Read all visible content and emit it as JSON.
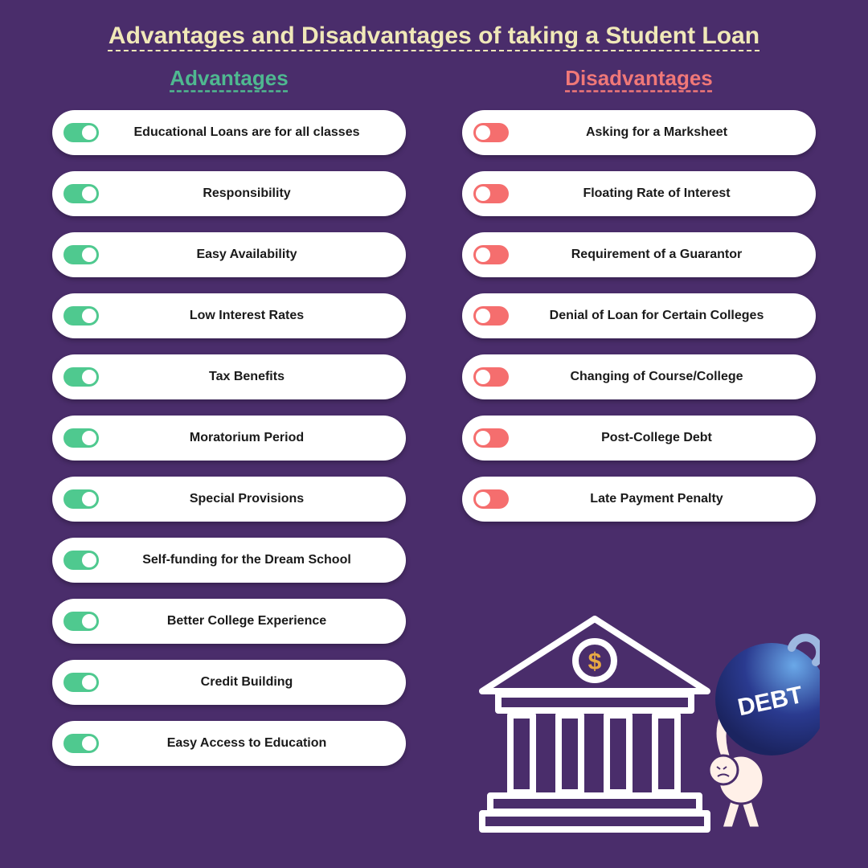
{
  "title": "Advantages and Disadvantages of taking a Student Loan",
  "advantages": {
    "heading": "Advantages",
    "color": "#4fb890",
    "toggle_color": "#4fc98f",
    "items": [
      "Educational Loans are for all classes",
      "Responsibility",
      "Easy Availability",
      "Low Interest Rates",
      "Tax Benefits",
      "Moratorium Period",
      "Special Provisions",
      "Self-funding for the Dream School",
      "Better College Experience",
      "Credit Building",
      "Easy Access to Education"
    ]
  },
  "disadvantages": {
    "heading": "Disadvantages",
    "color": "#f07878",
    "toggle_color": "#f56e6e",
    "items": [
      "Asking for a Marksheet",
      "Floating Rate of Interest",
      "Requirement of a Guarantor",
      "Denial of Loan for Certain Colleges",
      "Changing of Course/College",
      "Post-College Debt",
      "Late Payment Penalty"
    ]
  },
  "illustration": {
    "debt_label": "DEBT",
    "bank_stroke": "#ffffff",
    "coin_fill": "#e8a943",
    "ball_fill": "#2a3a8f",
    "ball_highlight": "#6aa8e8",
    "figure_fill": "#fff0e8"
  },
  "style": {
    "background": "#4a2d6b",
    "title_color": "#f0e8b8",
    "pill_bg": "#ffffff",
    "title_fontsize": 30,
    "col_title_fontsize": 26,
    "pill_label_fontsize": 16
  }
}
